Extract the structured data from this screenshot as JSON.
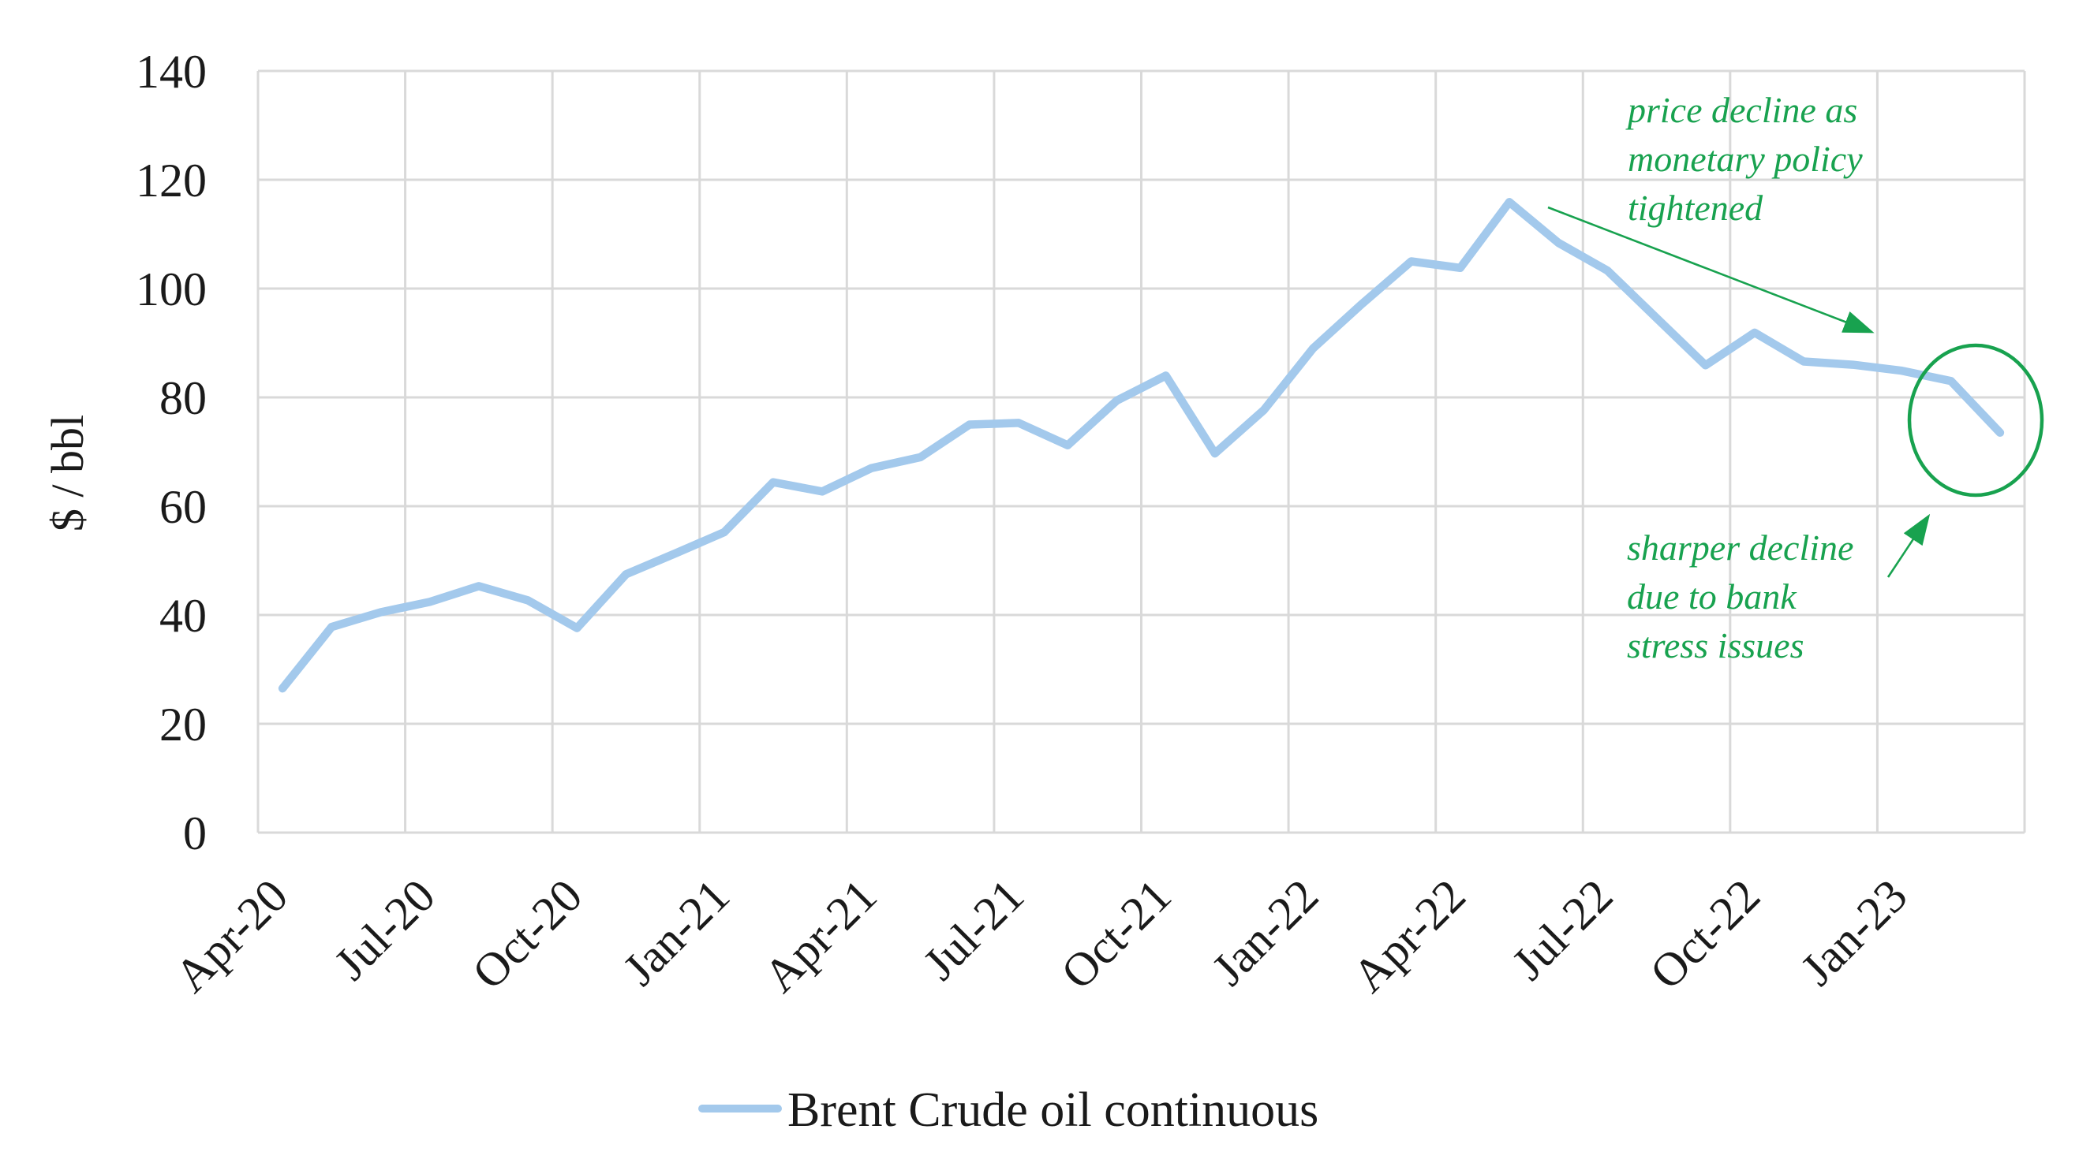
{
  "chart_data": {
    "type": "line",
    "title": "",
    "xlabel": "",
    "ylabel": "$ / bbl",
    "ylim": [
      0,
      140
    ],
    "y_ticks": [
      0,
      20,
      40,
      60,
      80,
      100,
      120,
      140
    ],
    "x_tick_labels": [
      "Apr-20",
      "Jul-20",
      "Oct-20",
      "Jan-21",
      "Apr-21",
      "Jul-21",
      "Oct-21",
      "Jan-22",
      "Apr-22",
      "Jul-22",
      "Oct-22",
      "Jan-23"
    ],
    "categories": [
      "Apr-20",
      "May-20",
      "Jun-20",
      "Jul-20",
      "Aug-20",
      "Sep-20",
      "Oct-20",
      "Nov-20",
      "Dec-20",
      "Jan-21",
      "Feb-21",
      "Mar-21",
      "Apr-21",
      "May-21",
      "Jun-21",
      "Jul-21",
      "Aug-21",
      "Sep-21",
      "Oct-21",
      "Nov-21",
      "Dec-21",
      "Jan-22",
      "Feb-22",
      "Mar-22",
      "Apr-22",
      "May-22",
      "Jun-22",
      "Jul-22",
      "Aug-22",
      "Sep-22",
      "Oct-22",
      "Nov-22",
      "Dec-22",
      "Jan-23",
      "Feb-23",
      "Mar-23"
    ],
    "series": [
      {
        "name": "Brent Crude oil continuous",
        "values": [
          26.5,
          37.8,
          40.5,
          42.4,
          45.3,
          42.7,
          37.6,
          47.5,
          51.3,
          55.2,
          64.4,
          62.7,
          67.0,
          69.0,
          75.0,
          75.3,
          71.2,
          79.4,
          84.0,
          69.7,
          77.7,
          89.0,
          97.2,
          105.0,
          103.8,
          115.9,
          108.4,
          103.3,
          94.6,
          85.9,
          91.9,
          86.6,
          86.0,
          84.9,
          83.0,
          73.5
        ]
      }
    ],
    "grid": true,
    "legend_position": "bottom-center"
  },
  "y_axis": {
    "title": "$ / bbl"
  },
  "legend": {
    "label": "Brent Crude oil continuous"
  },
  "annotations": {
    "monetary": {
      "line1": "price decline as",
      "line2": "monetary policy",
      "line3": "tightened"
    },
    "bank": {
      "line1": "sharper decline",
      "line2": "due to bank",
      "line3": "stress issues"
    }
  },
  "colors": {
    "series_line": "#a3c9ec",
    "annotation_green": "#18a24f",
    "gridline": "#d9d9d9",
    "text": "#1a1a1a"
  }
}
